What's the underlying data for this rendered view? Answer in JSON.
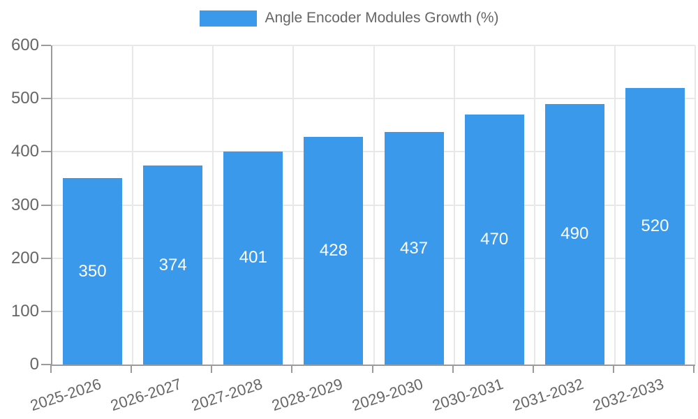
{
  "legend": {
    "label": "Angle Encoder Modules Growth (%)"
  },
  "chart_data": {
    "type": "bar",
    "title": "Angle Encoder Modules Growth (%)",
    "categories": [
      "2025-2026",
      "2026-2027",
      "2027-2028",
      "2028-2029",
      "2029-2030",
      "2030-2031",
      "2031-2032",
      "2032-2033"
    ],
    "values": [
      350,
      374,
      401,
      428,
      437,
      470,
      490,
      520
    ],
    "value_labels": [
      "350",
      "374",
      "401",
      "428",
      "437",
      "470",
      "490",
      "520"
    ],
    "xlabel": "",
    "ylabel": "",
    "ylim": [
      0,
      600
    ],
    "yticks": [
      0,
      100,
      200,
      300,
      400,
      500,
      600
    ],
    "grid": true,
    "legend_position": "top",
    "bar_color": "#3b99ec",
    "value_label_color": "#ffffff",
    "axis_color": "#9b9b9b",
    "grid_color": "#e8e8e8",
    "tick_label_color": "#666666",
    "background_color": "#ffffff"
  }
}
